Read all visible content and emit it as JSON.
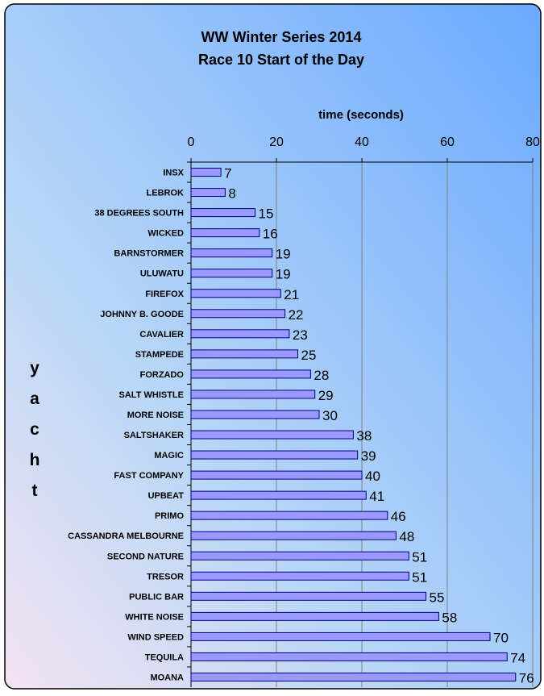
{
  "chart_data": {
    "type": "bar",
    "orientation": "horizontal",
    "title": [
      "WW Winter Series 2014",
      "Race 10 Start of the Day"
    ],
    "xlabel": "time (seconds)",
    "ylabel": [
      "y",
      "a",
      "c",
      "h",
      "t"
    ],
    "xlim": [
      0,
      80
    ],
    "xticks": [
      0,
      20,
      40,
      60,
      80
    ],
    "x_axis_position": "top",
    "grid": "vertical",
    "data_labels": true,
    "categories": [
      "INSX",
      "LEBROK",
      "38 DEGREES SOUTH",
      "WICKED",
      "BARNSTORMER",
      "ULUWATU",
      "FIREFOX",
      "JOHNNY B. GOODE",
      "CAVALIER",
      "STAMPEDE",
      "FORZADO",
      "SALT WHISTLE",
      "MORE NOISE",
      "SALTSHAKER",
      "MAGIC",
      "FAST COMPANY",
      "UPBEAT",
      "PRIMO",
      "CASSANDRA MELBOURNE",
      "SECOND NATURE",
      "TRESOR",
      "PUBLIC BAR",
      "WHITE NOISE",
      "WIND SPEED",
      "TEQUILA",
      "MOANA"
    ],
    "values": [
      7,
      8,
      15,
      16,
      19,
      19,
      21,
      22,
      23,
      25,
      28,
      29,
      30,
      38,
      39,
      40,
      41,
      46,
      48,
      51,
      51,
      55,
      58,
      70,
      74,
      76
    ],
    "colors": {
      "bar_fill": "#9999ff",
      "bar_stroke": "#000080",
      "background_start": "#d6c7ec",
      "background_end": "#7ab4ff",
      "gridline": "#808080",
      "text": "#000000"
    }
  }
}
